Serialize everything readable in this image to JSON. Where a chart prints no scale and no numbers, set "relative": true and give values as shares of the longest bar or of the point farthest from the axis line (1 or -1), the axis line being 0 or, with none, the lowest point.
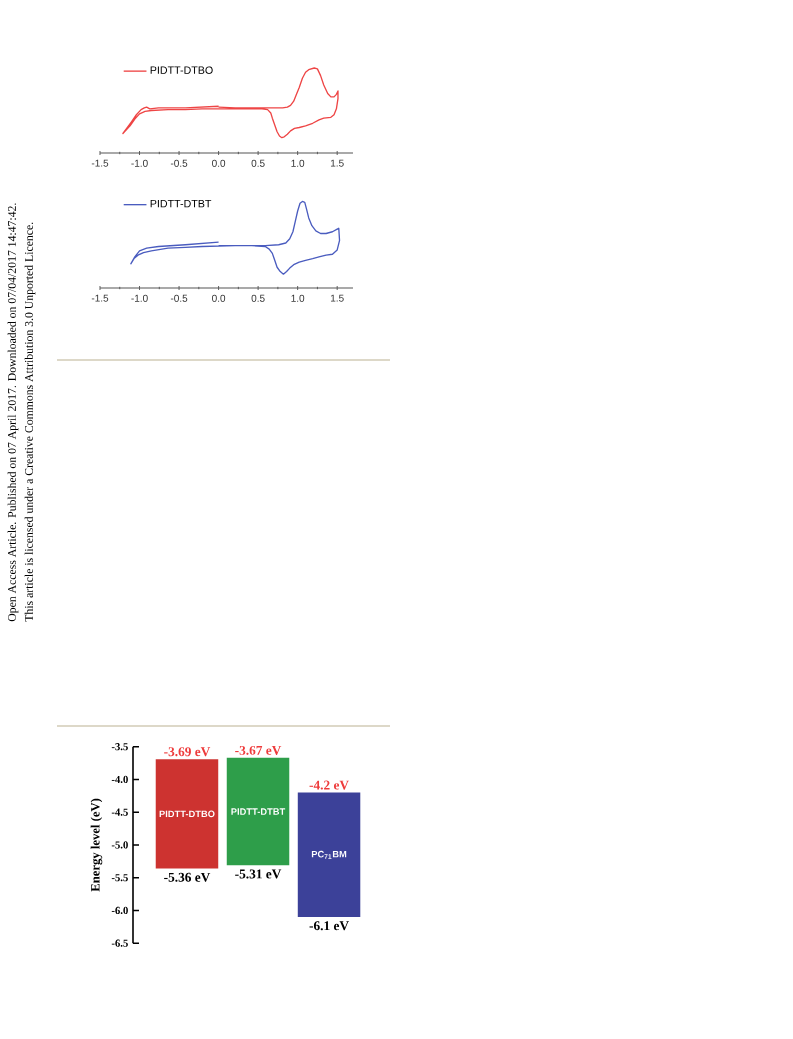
{
  "chart_data": [
    {
      "type": "line",
      "relative": true,
      "xlim": [
        -1.5,
        1.7
      ],
      "xticks": [
        -1.5,
        {
          "value": -1.25,
          "label": null
        },
        {
          "value": -1,
          "label": "-1.0"
        },
        {
          "value": -0.75,
          "label": null
        },
        -0.5,
        {
          "value": -0.25,
          "label": null
        },
        {
          "value": 0,
          "label": "0.0"
        },
        {
          "value": 0.25,
          "label": null
        },
        0.5,
        {
          "value": 0.75,
          "label": null
        },
        {
          "value": 1,
          "label": "1.0"
        },
        {
          "value": 1.25,
          "label": null
        },
        1.5
      ],
      "legend": "top left",
      "series": [
        {
          "name": "PIDTT-DTBO",
          "color": "#ee4545",
          "x": [
            0,
            0.21,
            0.42,
            0.64,
            0.81,
            0.87,
            0.91,
            0.95,
            0.98,
            1.02,
            1.06,
            1.1,
            1.14,
            1.21,
            1.25,
            1.29,
            1.33,
            1.38,
            1.42,
            1.46,
            1.49,
            1.51,
            1.51,
            1.49,
            1.46,
            1.42,
            1.33,
            1.27,
            1.19,
            1.1,
            1.02,
            0.96,
            0.91,
            0.87,
            0.83,
            0.8,
            0.77,
            0.74,
            0.71,
            0.68,
            0.66,
            0.62,
            0.55,
            0.42,
            0.21,
            -0.21,
            -0.42,
            -0.64,
            -0.85,
            -0.93,
            -1,
            -1.06,
            -1.12,
            -1.19,
            -1.21,
            -1.17,
            -1.1,
            -1.04,
            -0.98,
            -0.94,
            -0.91,
            -0.87,
            -0.76,
            -0.42,
            0
          ],
          "values": [
            0.54,
            0.53,
            0.53,
            0.53,
            0.53,
            0.54,
            0.56,
            0.61,
            0.68,
            0.77,
            0.88,
            0.95,
            0.98,
            1,
            0.99,
            0.91,
            0.8,
            0.7,
            0.66,
            0.66,
            0.69,
            0.73,
            0.64,
            0.52,
            0.45,
            0.42,
            0.41,
            0.39,
            0.35,
            0.32,
            0.3,
            0.29,
            0.26,
            0.22,
            0.19,
            0.18,
            0.2,
            0.25,
            0.33,
            0.41,
            0.47,
            0.51,
            0.52,
            0.52,
            0.52,
            0.52,
            0.51,
            0.51,
            0.5,
            0.49,
            0.46,
            0.4,
            0.32,
            0.25,
            0.23,
            0.28,
            0.37,
            0.45,
            0.51,
            0.53,
            0.54,
            0.52,
            0.53,
            0.53,
            0.55
          ]
        }
      ]
    },
    {
      "type": "line",
      "relative": true,
      "xlim": [
        -1.5,
        1.7
      ],
      "xticks": [
        -1.5,
        {
          "value": -1.25,
          "label": null
        },
        {
          "value": -1,
          "label": "-1.0"
        },
        {
          "value": -0.75,
          "label": null
        },
        -0.5,
        {
          "value": -0.25,
          "label": null
        },
        {
          "value": 0,
          "label": "0.0"
        },
        {
          "value": 0.25,
          "label": null
        },
        0.5,
        {
          "value": 0.75,
          "label": null
        },
        {
          "value": 1,
          "label": "1.0"
        },
        {
          "value": 1.25,
          "label": null
        },
        1.5
      ],
      "legend": "top left",
      "series": [
        {
          "name": "PIDTT-DTBT",
          "color": "#4a5cbf",
          "x": [
            0,
            0.21,
            0.42,
            0.59,
            0.76,
            0.85,
            0.9,
            0.94,
            0.97,
            1,
            1.03,
            1.06,
            1.09,
            1.11,
            1.14,
            1.18,
            1.23,
            1.29,
            1.36,
            1.44,
            1.5,
            1.52,
            1.53,
            1.5,
            1.44,
            1.36,
            1.27,
            1.19,
            1.1,
            1.02,
            0.95,
            0.9,
            0.86,
            0.82,
            0.78,
            0.74,
            0.71,
            0.68,
            0.64,
            0.59,
            0.42,
            0.21,
            -0.21,
            -0.42,
            -0.64,
            -0.85,
            -0.95,
            -1.02,
            -1.07,
            -1.11,
            -1.06,
            -1,
            -0.91,
            -0.76,
            -0.42,
            0
          ],
          "values": [
            0.49,
            0.49,
            0.49,
            0.49,
            0.5,
            0.52,
            0.57,
            0.65,
            0.77,
            0.89,
            0.98,
            1,
            0.99,
            0.92,
            0.81,
            0.72,
            0.66,
            0.63,
            0.63,
            0.65,
            0.68,
            0.69,
            0.55,
            0.44,
            0.39,
            0.38,
            0.36,
            0.34,
            0.32,
            0.3,
            0.27,
            0.23,
            0.19,
            0.16,
            0.19,
            0.24,
            0.32,
            0.4,
            0.45,
            0.48,
            0.49,
            0.49,
            0.48,
            0.47,
            0.46,
            0.43,
            0.41,
            0.38,
            0.34,
            0.28,
            0.36,
            0.43,
            0.46,
            0.48,
            0.5,
            0.53
          ]
        }
      ]
    },
    {
      "type": "bar",
      "ylabel": "Energy level (eV)",
      "categories": [
        "PIDTT-DTBO",
        "PIDTT-DTBT",
        "PC$_{71}$BM"
      ],
      "values": [
        1.67,
        1.64,
        1.9
      ],
      "base": [
        -5.36,
        -5.31,
        -6.1
      ],
      "colors": [
        "#cd3330",
        "#2e9e4a",
        "#3c4199"
      ],
      "ylim": [
        -6.5,
        -3.5
      ],
      "yticks": [
        -6.5,
        {
          "value": -6,
          "label": "-6.0"
        },
        -5.5,
        {
          "value": -5,
          "label": "-5.0"
        },
        -4.5,
        {
          "value": -4,
          "label": "-4.0"
        },
        -3.5
      ],
      "annotations": [
        {
          "text": "-3.69 eV",
          "x": "PIDTT-DTBO",
          "y": -3.69
        },
        {
          "text": "-5.36 eV",
          "x": "PIDTT-DTBO",
          "y": -5.36
        },
        {
          "text": "-3.67 eV",
          "x": "PIDTT-DTBT",
          "y": -3.67
        },
        {
          "text": "-5.31 eV",
          "x": "PIDTT-DTBT",
          "y": -5.31
        },
        {
          "text": "-4.2 eV",
          "x": "PC$_{71}$BM",
          "y": -4.2
        },
        {
          "text": "-6.1 eV",
          "x": "PC$_{71}$BM",
          "y": -6.1
        }
      ]
    },
    {
      "type": "other",
      "annotations": [
        "Open Access Article. Published on 07 April 2017. Downloaded on 07/04/2017 14:47:42.",
        "This article is licensed under a Creative Commons Attribution 3.0 Unported Licence."
      ]
    }
  ]
}
